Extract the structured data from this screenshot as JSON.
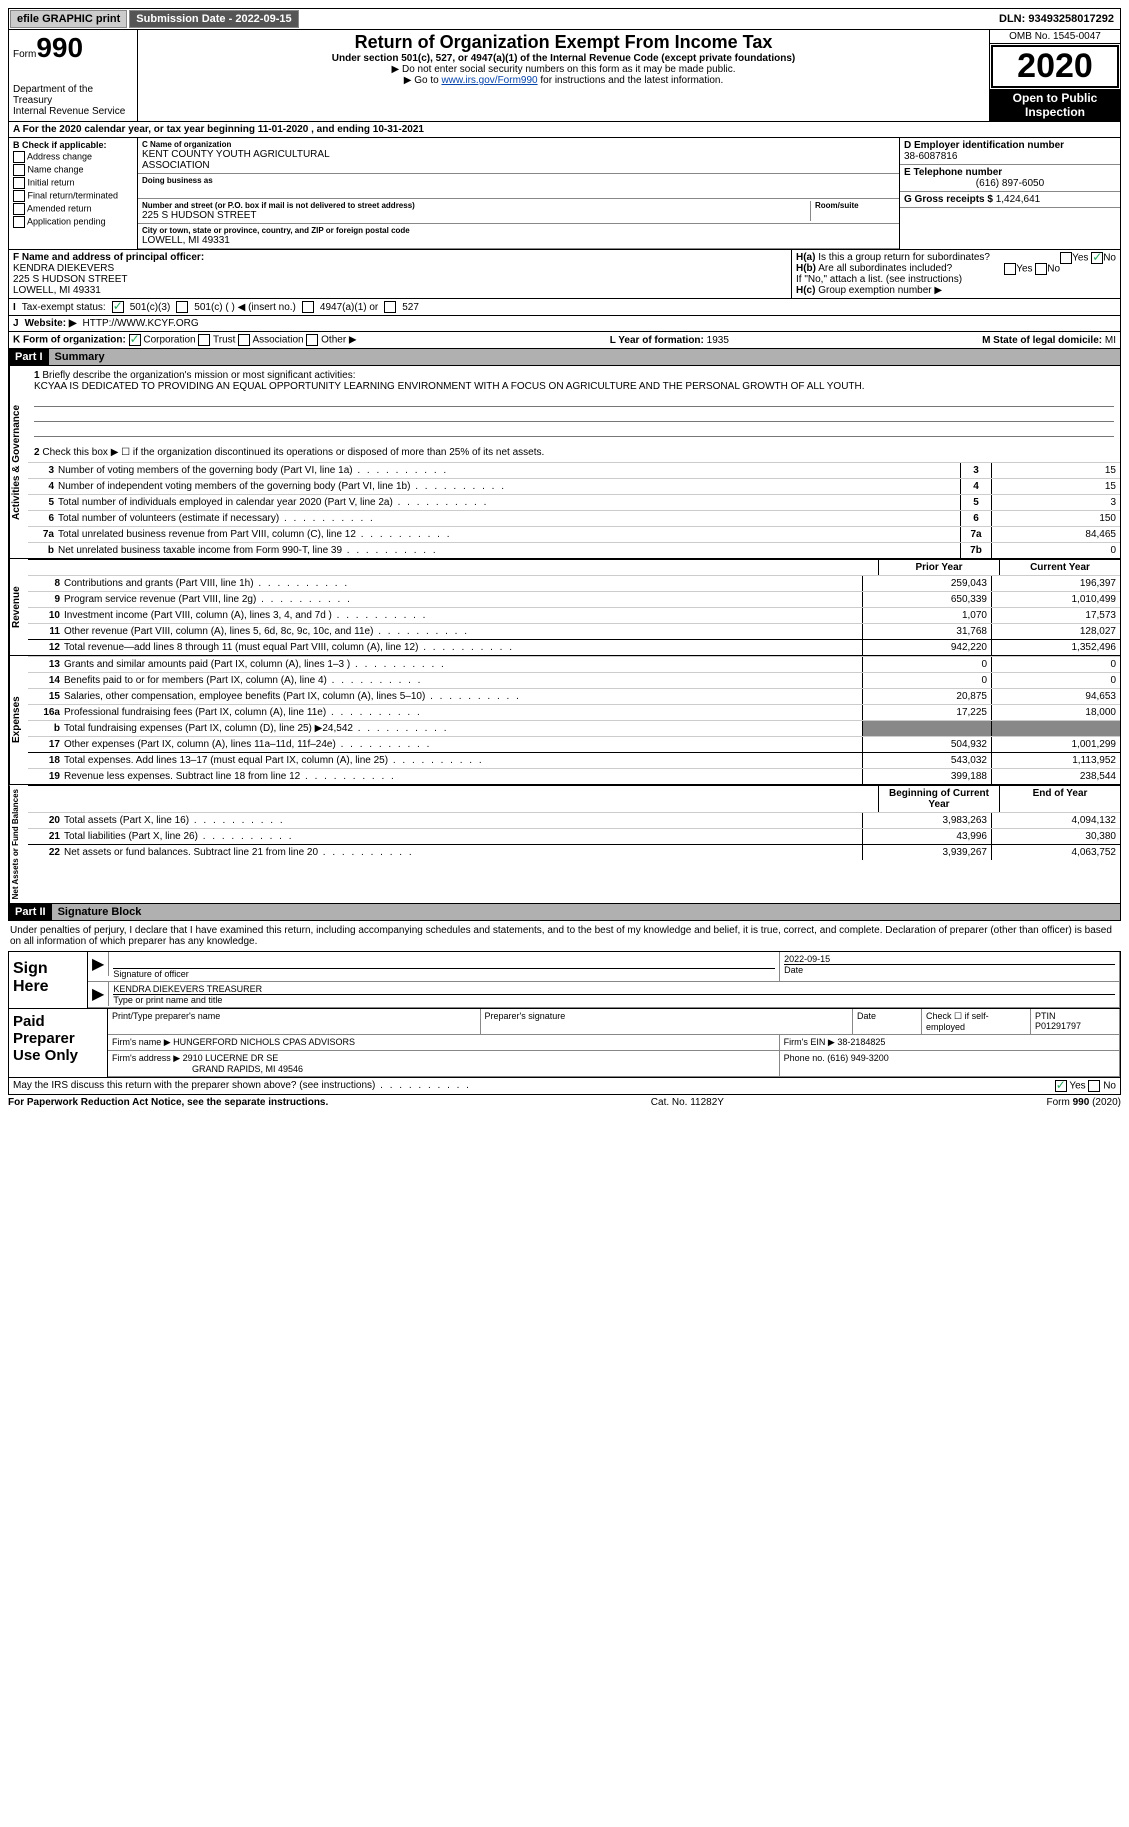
{
  "topbar": {
    "efile": "efile GRAPHIC print",
    "sub_label": "Submission Date - ",
    "sub_date": "2022-09-15",
    "dln_label": "DLN: ",
    "dln": "93493258017292"
  },
  "header": {
    "form_prefix": "Form",
    "form_number": "990",
    "dept1": "Department of the Treasury",
    "dept2": "Internal Revenue Service",
    "title": "Return of Organization Exempt From Income Tax",
    "subtitle": "Under section 501(c), 527, or 4947(a)(1) of the Internal Revenue Code (except private foundations)",
    "note1": "▶ Do not enter social security numbers on this form as it may be made public.",
    "note2_pre": "▶ Go to ",
    "note2_link": "www.irs.gov/Form990",
    "note2_post": " for instructions and the latest information.",
    "omb": "OMB No. 1545-0047",
    "year": "2020",
    "inspect1": "Open to Public",
    "inspect2": "Inspection"
  },
  "taxyear": {
    "line_pre": "A For the 2020 calendar year, or tax year beginning ",
    "begin": "11-01-2020",
    "mid": " , and ending ",
    "end": "10-31-2021"
  },
  "boxB": {
    "label": "B Check if applicable:",
    "addr_change": "Address change",
    "name_change": "Name change",
    "initial": "Initial return",
    "final": "Final return/terminated",
    "amended": "Amended return",
    "pending": "Application pending"
  },
  "boxC": {
    "name_label": "C Name of organization",
    "name1": "KENT COUNTY YOUTH AGRICULTURAL",
    "name2": "ASSOCIATION",
    "dba_label": "Doing business as",
    "street_label": "Number and street (or P.O. box if mail is not delivered to street address)",
    "room_label": "Room/suite",
    "street": "225 S HUDSON STREET",
    "city_label": "City or town, state or province, country, and ZIP or foreign postal code",
    "city": "LOWELL, MI  49331"
  },
  "boxD": {
    "label": "D Employer identification number",
    "ein": "38-6087816"
  },
  "boxE": {
    "label": "E Telephone number",
    "phone": "(616) 897-6050"
  },
  "boxG": {
    "label": "G Gross receipts $ ",
    "amount": "1,424,641"
  },
  "boxF": {
    "label": "F Name and address of principal officer:",
    "name": "KENDRA DIEKEVERS",
    "street": "225 S HUDSON STREET",
    "city": "LOWELL, MI  49331"
  },
  "boxH": {
    "ha_label": "H(a)",
    "ha_text": "Is this a group return for subordinates?",
    "ha_yes": "Yes",
    "ha_no": "No",
    "hb_label": "H(b)",
    "hb_text": "Are all subordinates included?",
    "hb_yes": "Yes",
    "hb_no": "No",
    "hb_note": "If \"No,\" attach a list. (see instructions)",
    "hc_label": "H(c)",
    "hc_text": "Group exemption number ▶"
  },
  "boxI": {
    "label": "I",
    "text": "Tax-exempt status:",
    "o1": "501(c)(3)",
    "o2": "501(c) (  ) ◀ (insert no.)",
    "o3": "4947(a)(1) or",
    "o4": "527"
  },
  "boxJ": {
    "label": "J",
    "text": "Website: ▶",
    "url": "HTTP://WWW.KCYF.ORG"
  },
  "boxK": {
    "label": "K Form of organization:",
    "corp": "Corporation",
    "trust": "Trust",
    "assoc": "Association",
    "other": "Other ▶"
  },
  "boxL": {
    "label": "L Year of formation: ",
    "val": "1935"
  },
  "boxM": {
    "label": "M State of legal domicile: ",
    "val": "MI"
  },
  "part1": {
    "tag": "Part I",
    "title": "Summary"
  },
  "governance": {
    "label": "Activities & Governance",
    "l1_n": "1",
    "l1": "Briefly describe the organization's mission or most significant activities:",
    "mission": "KCYAA IS DEDICATED TO PROVIDING AN EQUAL OPPORTUNITY LEARNING ENVIRONMENT WITH A FOCUS ON AGRICULTURE AND THE PERSONAL GROWTH OF ALL YOUTH.",
    "l2_n": "2",
    "l2": "Check this box ▶ ☐ if the organization discontinued its operations or disposed of more than 25% of its net assets.",
    "rows": [
      {
        "n": "3",
        "desc": "Number of voting members of the governing body (Part VI, line 1a)",
        "box": "3",
        "val": "15"
      },
      {
        "n": "4",
        "desc": "Number of independent voting members of the governing body (Part VI, line 1b)",
        "box": "4",
        "val": "15"
      },
      {
        "n": "5",
        "desc": "Total number of individuals employed in calendar year 2020 (Part V, line 2a)",
        "box": "5",
        "val": "3"
      },
      {
        "n": "6",
        "desc": "Total number of volunteers (estimate if necessary)",
        "box": "6",
        "val": "150"
      },
      {
        "n": "7a",
        "desc": "Total unrelated business revenue from Part VIII, column (C), line 12",
        "box": "7a",
        "val": "84,465"
      },
      {
        "n": "b",
        "desc": "Net unrelated business taxable income from Form 990-T, line 39",
        "box": "7b",
        "val": "0"
      }
    ]
  },
  "revenue": {
    "label": "Revenue",
    "head_prior": "Prior Year",
    "head_current": "Current Year",
    "rows": [
      {
        "n": "8",
        "desc": "Contributions and grants (Part VIII, line 1h)",
        "prior": "259,043",
        "curr": "196,397"
      },
      {
        "n": "9",
        "desc": "Program service revenue (Part VIII, line 2g)",
        "prior": "650,339",
        "curr": "1,010,499"
      },
      {
        "n": "10",
        "desc": "Investment income (Part VIII, column (A), lines 3, 4, and 7d )",
        "prior": "1,070",
        "curr": "17,573"
      },
      {
        "n": "11",
        "desc": "Other revenue (Part VIII, column (A), lines 5, 6d, 8c, 9c, 10c, and 11e)",
        "prior": "31,768",
        "curr": "128,027"
      },
      {
        "n": "12",
        "desc": "Total revenue—add lines 8 through 11 (must equal Part VIII, column (A), line 12)",
        "prior": "942,220",
        "curr": "1,352,496",
        "hl": true
      }
    ]
  },
  "expenses": {
    "label": "Expenses",
    "rows": [
      {
        "n": "13",
        "desc": "Grants and similar amounts paid (Part IX, column (A), lines 1–3 )",
        "prior": "0",
        "curr": "0"
      },
      {
        "n": "14",
        "desc": "Benefits paid to or for members (Part IX, column (A), line 4)",
        "prior": "0",
        "curr": "0"
      },
      {
        "n": "15",
        "desc": "Salaries, other compensation, employee benefits (Part IX, column (A), lines 5–10)",
        "prior": "20,875",
        "curr": "94,653"
      },
      {
        "n": "16a",
        "desc": "Professional fundraising fees (Part IX, column (A), line 11e)",
        "prior": "17,225",
        "curr": "18,000"
      },
      {
        "n": "b",
        "desc": "Total fundraising expenses (Part IX, column (D), line 25) ▶24,542",
        "prior": "",
        "curr": "",
        "shade": true
      },
      {
        "n": "17",
        "desc": "Other expenses (Part IX, column (A), lines 11a–11d, 11f–24e)",
        "prior": "504,932",
        "curr": "1,001,299"
      },
      {
        "n": "18",
        "desc": "Total expenses. Add lines 13–17 (must equal Part IX, column (A), line 25)",
        "prior": "543,032",
        "curr": "1,113,952",
        "hl": true
      },
      {
        "n": "19",
        "desc": "Revenue less expenses. Subtract line 18 from line 12",
        "prior": "399,188",
        "curr": "238,544"
      }
    ]
  },
  "netassets": {
    "label": "Net Assets or Fund Balances",
    "head_begin": "Beginning of Current Year",
    "head_end": "End of Year",
    "rows": [
      {
        "n": "20",
        "desc": "Total assets (Part X, line 16)",
        "prior": "3,983,263",
        "curr": "4,094,132"
      },
      {
        "n": "21",
        "desc": "Total liabilities (Part X, line 26)",
        "prior": "43,996",
        "curr": "30,380"
      },
      {
        "n": "22",
        "desc": "Net assets or fund balances. Subtract line 21 from line 20",
        "prior": "3,939,267",
        "curr": "4,063,752",
        "hl": true
      }
    ]
  },
  "part2": {
    "tag": "Part II",
    "title": "Signature Block"
  },
  "penalties": "Under penalties of perjury, I declare that I have examined this return, including accompanying schedules and statements, and to the best of my knowledge and belief, it is true, correct, and complete. Declaration of preparer (other than officer) is based on all information of which preparer has any knowledge.",
  "sign": {
    "label": "Sign Here",
    "sig_label": "Signature of officer",
    "date_label": "Date",
    "date": "2022-09-15",
    "name": "KENDRA DIEKEVERS TREASURER",
    "name_label": "Type or print name and title"
  },
  "preparer": {
    "label": "Paid Preparer Use Only",
    "h1": "Print/Type preparer's name",
    "h2": "Preparer's signature",
    "h3": "Date",
    "h4_pre": "Check ☐ if self-employed",
    "h5_label": "PTIN",
    "ptin": "P01291797",
    "firm_name_label": "Firm's name   ▶ ",
    "firm_name": "HUNGERFORD NICHOLS CPAS ADVISORS",
    "firm_ein_label": "Firm's EIN ▶ ",
    "firm_ein": "38-2184825",
    "firm_addr_label": "Firm's address ▶ ",
    "firm_addr1": "2910 LUCERNE DR SE",
    "firm_addr2": "GRAND RAPIDS, MI  49546",
    "phone_label": "Phone no. ",
    "phone": "(616) 949-3200"
  },
  "discuss": {
    "text": "May the IRS discuss this return with the preparer shown above? (see instructions)",
    "yes": "Yes",
    "no": "No"
  },
  "footer": {
    "left": "For Paperwork Reduction Act Notice, see the separate instructions.",
    "mid": "Cat. No. 11282Y",
    "right_pre": "Form ",
    "right_form": "990",
    "right_year": " (2020)"
  }
}
